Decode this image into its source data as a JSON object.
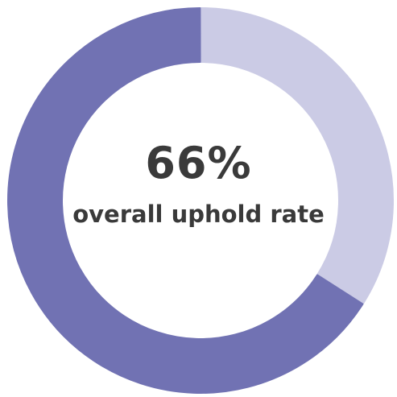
{
  "chart_data": {
    "type": "pie",
    "donut": true,
    "start": "12 o'clock, clockwise",
    "segments": [
      {
        "value": 34,
        "color": "#cbcbe5"
      },
      {
        "value": 66,
        "color": "#7172b3"
      }
    ],
    "center_value": "66%",
    "center_label": "overall uphold rate"
  }
}
